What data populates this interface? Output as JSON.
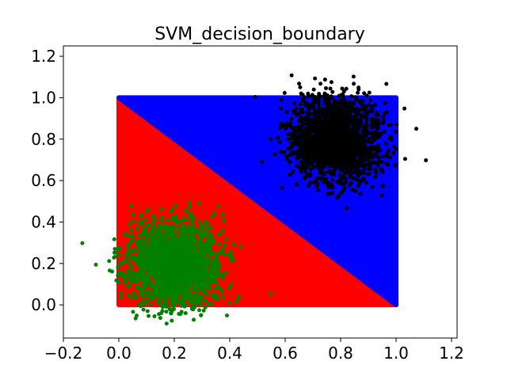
{
  "chart_data": {
    "type": "scatter",
    "title": "SVM_decision_boundary",
    "xlabel": "",
    "ylabel": "",
    "xlim": [
      -0.2,
      1.22
    ],
    "ylim": [
      -0.16,
      1.25
    ],
    "x_ticks": [
      "−0.2",
      "0.0",
      "0.2",
      "0.4",
      "0.6",
      "0.8",
      "1.0",
      "1.2"
    ],
    "x_tick_values": [
      -0.2,
      0.0,
      0.2,
      0.4,
      0.6,
      0.8,
      1.0,
      1.2
    ],
    "y_ticks": [
      "0.0",
      "0.2",
      "0.4",
      "0.6",
      "0.8",
      "1.0",
      "1.2"
    ],
    "y_tick_values": [
      0.0,
      0.2,
      0.4,
      0.6,
      0.8,
      1.0,
      1.2
    ],
    "grid": false,
    "decision_regions": [
      {
        "class": "below x + y = 1",
        "color": "#ff0000",
        "polygon": [
          [
            0,
            0
          ],
          [
            1,
            0
          ],
          [
            0,
            1
          ]
        ]
      },
      {
        "class": "above x + y = 1",
        "color": "#0000ff",
        "polygon": [
          [
            0,
            1
          ],
          [
            1,
            0
          ],
          [
            1,
            1
          ]
        ]
      }
    ],
    "series": [
      {
        "color": "#000000",
        "distribution": "gaussian cluster",
        "center": [
          0.78,
          0.8
        ],
        "std": [
          0.08,
          0.1
        ],
        "count": 2000,
        "extent_x": [
          0.45,
          1.15
        ],
        "extent_y": [
          0.43,
          1.17
        ]
      },
      {
        "color": "#008000",
        "distribution": "gaussian cluster",
        "center": [
          0.2,
          0.19
        ],
        "std": [
          0.08,
          0.1
        ],
        "count": 2000,
        "extent_x": [
          -0.15,
          0.57
        ],
        "extent_y": [
          -0.1,
          0.5
        ]
      }
    ]
  }
}
